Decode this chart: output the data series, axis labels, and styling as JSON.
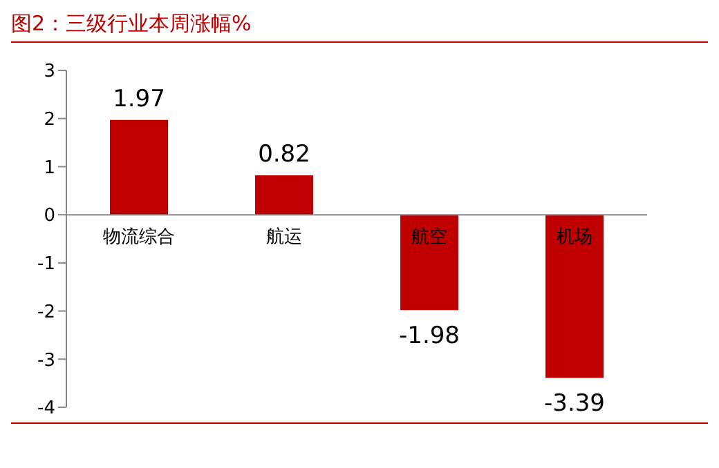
{
  "chart_data": {
    "type": "bar",
    "title": "图2：三级行业本周涨幅%",
    "categories": [
      "物流综合",
      "航运",
      "航空",
      "机场"
    ],
    "values": [
      1.97,
      0.82,
      -1.98,
      -3.39
    ],
    "color": "#c00000",
    "ylim": [
      -4,
      3
    ],
    "yticks": [
      -4,
      -3,
      -2,
      -1,
      0,
      1,
      2,
      3
    ],
    "grid": false,
    "data_labels": true
  }
}
